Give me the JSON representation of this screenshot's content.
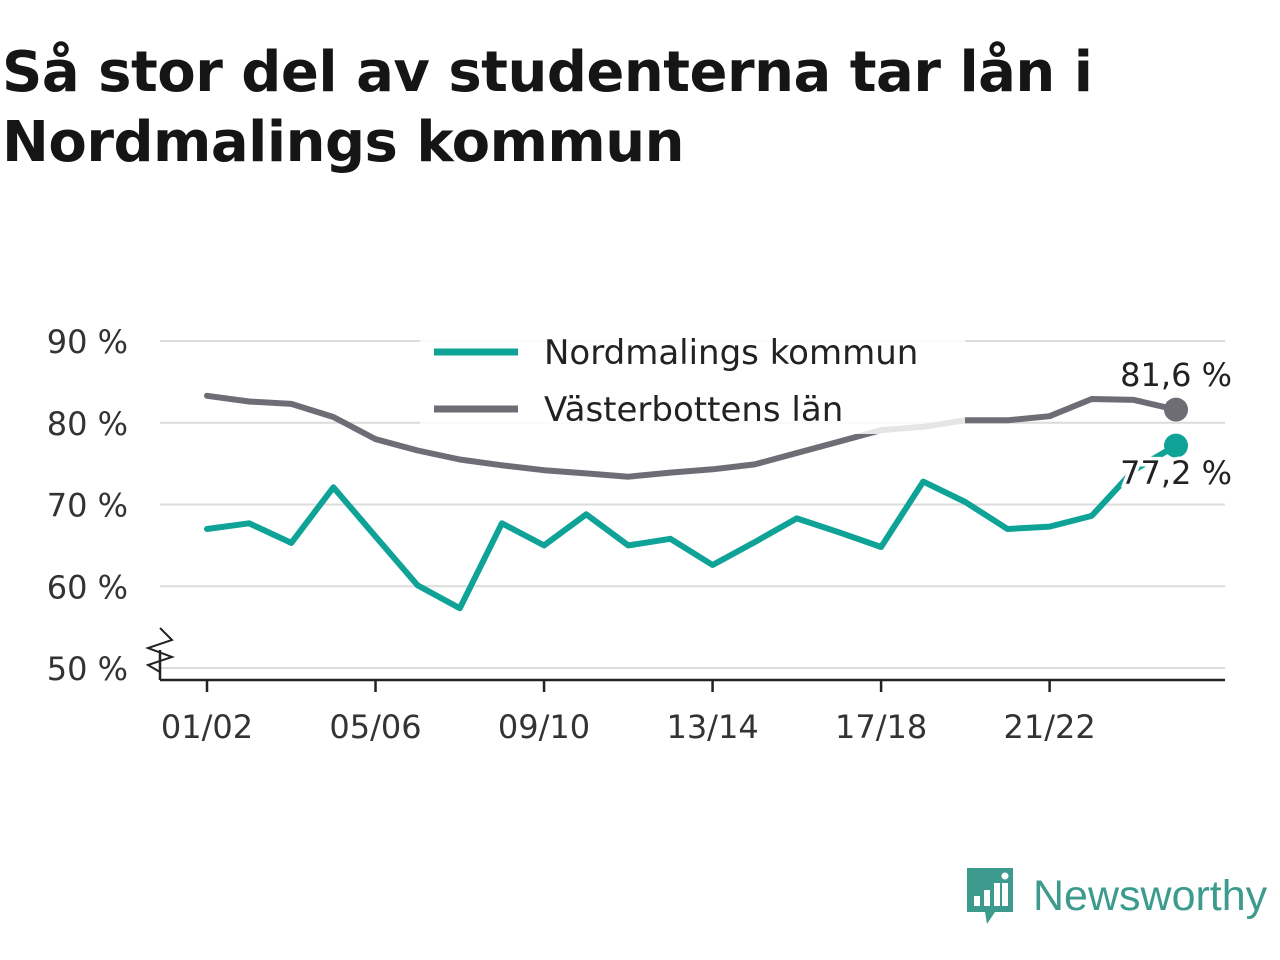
{
  "title": "Så stor del av studenterna tar lån i Nordmalings kommun",
  "brand": {
    "name": "Newsworthy",
    "icon": "newsworthy-logo-icon",
    "color": "#3d9b8e"
  },
  "chart_data": {
    "type": "line",
    "title": "Så stor del av studenterna tar lån i Nordmalings kommun",
    "xlabel": "",
    "ylabel": "",
    "ylim": [
      50,
      90
    ],
    "y_ticks": [
      50,
      60,
      70,
      80,
      90
    ],
    "y_tick_labels": [
      "50 %",
      "60 %",
      "70 %",
      "80 %",
      "90 %"
    ],
    "y_axis_break": true,
    "grid": true,
    "legend_position": "top-center",
    "x": [
      "01/02",
      "02/03",
      "03/04",
      "04/05",
      "05/06",
      "06/07",
      "07/08",
      "08/09",
      "09/10",
      "10/11",
      "11/12",
      "12/13",
      "13/14",
      "14/15",
      "15/16",
      "16/17",
      "17/18",
      "18/19",
      "19/20",
      "20/21",
      "21/22",
      "22/23",
      "23/24",
      "24/25"
    ],
    "x_tick_labels": [
      "01/02",
      "05/06",
      "09/10",
      "13/14",
      "17/18",
      "21/22"
    ],
    "series": [
      {
        "name": "Nordmalings kommun",
        "color": "#0fa397",
        "values": [
          67.0,
          67.7,
          65.3,
          72.1,
          66.1,
          60.1,
          57.3,
          67.7,
          65.0,
          68.8,
          65.0,
          65.8,
          62.6,
          65.4,
          68.3,
          66.6,
          64.8,
          72.8,
          70.3,
          67.0,
          67.3,
          68.6,
          74.2,
          77.2
        ],
        "end_label": "77,2 %"
      },
      {
        "name": "Västerbottens län",
        "color": "#6e6d75",
        "values": [
          83.3,
          82.6,
          82.3,
          80.7,
          78.0,
          76.6,
          75.5,
          74.8,
          74.2,
          73.8,
          73.4,
          73.9,
          74.3,
          74.9,
          76.3,
          77.7,
          79.1,
          79.5,
          80.3,
          80.3,
          80.8,
          82.9,
          82.8,
          81.6
        ],
        "end_label": "81,6 %"
      }
    ]
  }
}
